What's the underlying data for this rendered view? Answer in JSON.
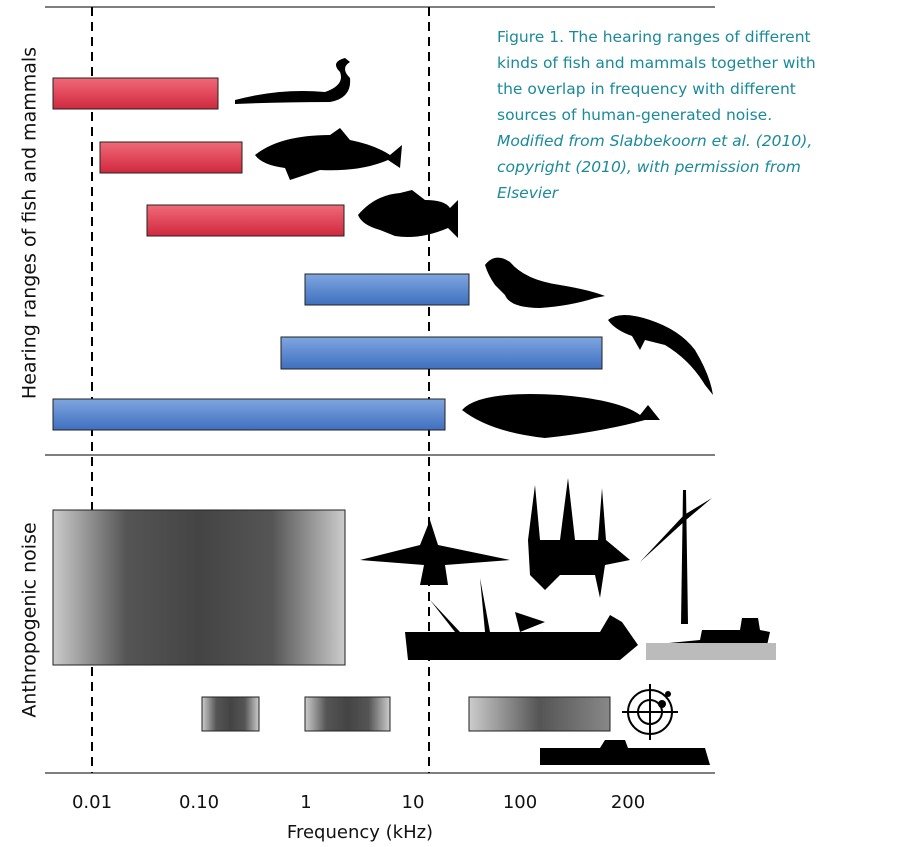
{
  "caption": {
    "text": "Figure 1. The hearing ranges of different kinds of fish and mammals together with the overlap in frequency with different sources of human-generated noise.",
    "credit": "Modified from Slabbekoorn et al. (2010), copyright (2010), with permission from Elsevier"
  },
  "panels": {
    "top": "Hearing ranges of fish and mammals",
    "bottom": "Anthropogenic noise"
  },
  "x_axis": {
    "label": "Frequency (kHz)",
    "ticks": [
      "0.01",
      "0.10",
      "1",
      "10",
      "100",
      "200"
    ]
  }
}
